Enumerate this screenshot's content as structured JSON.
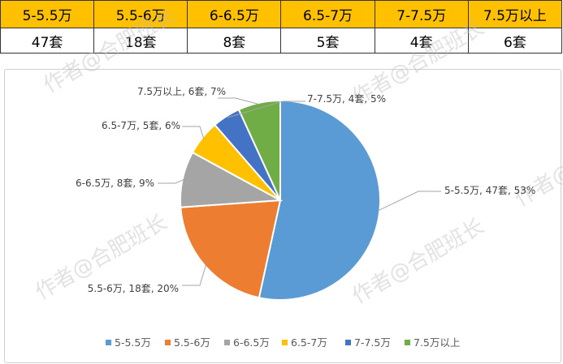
{
  "table": {
    "headers": [
      "5-5.5万",
      "5.5-6万",
      "6-6.5万",
      "6.5-7万",
      "7-7.5万",
      "7.5万以上"
    ],
    "counts": [
      "47套",
      "18套",
      "8套",
      "5套",
      "4套",
      "6套"
    ]
  },
  "watermark": "作者@合肥班长",
  "colors": {
    "header_fill": "#ffc000"
  },
  "chart_data": {
    "type": "pie",
    "legend_position": "bottom",
    "slices": [
      {
        "name": "5-5.5万",
        "value": 47,
        "percent": 53,
        "label": "5-5.5万, 47套, 53%",
        "color": "#5b9bd5"
      },
      {
        "name": "5.5-6万",
        "value": 18,
        "percent": 20,
        "label": "5.5-6万, 18套, 20%",
        "color": "#ed7d31"
      },
      {
        "name": "6-6.5万",
        "value": 8,
        "percent": 9,
        "label": "6-6.5万, 8套, 9%",
        "color": "#a5a5a5"
      },
      {
        "name": "6.5-7万",
        "value": 5,
        "percent": 6,
        "label": "6.5-7万, 5套, 6%",
        "color": "#ffc000"
      },
      {
        "name": "7-7.5万",
        "value": 4,
        "percent": 5,
        "label": "7-7.5万, 4套, 5%",
        "color": "#4472c4"
      },
      {
        "name": "7.5万以上",
        "value": 6,
        "percent": 7,
        "label": "7.5万以上, 6套, 7%",
        "color": "#70ad47"
      }
    ]
  }
}
